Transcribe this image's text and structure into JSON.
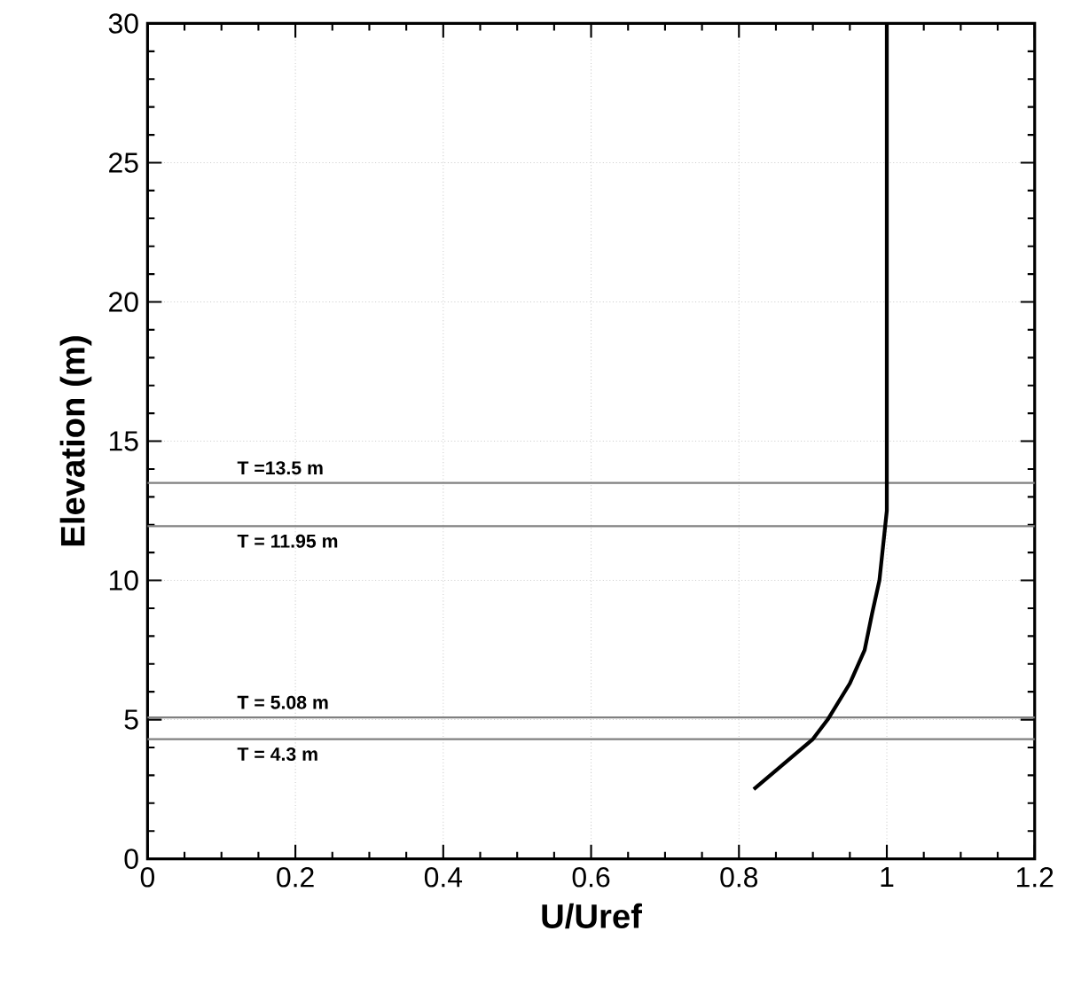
{
  "chart_data": {
    "type": "line",
    "xlabel": "U/Uref",
    "ylabel": "Elevation (m)",
    "x": [
      0.82,
      0.86,
      0.9,
      0.92,
      0.95,
      0.97,
      0.98,
      0.99,
      1.0,
      1.0
    ],
    "series": [
      {
        "color": "#000000",
        "values": [
          2.5,
          3.4,
          4.3,
          5.0,
          6.3,
          7.5,
          8.8,
          10,
          12.5,
          30
        ]
      }
    ],
    "xlim": [
      0,
      1.2
    ],
    "ylim": [
      0,
      30
    ],
    "xticks": [
      0,
      0.2,
      0.4,
      0.6,
      0.8,
      1,
      1.2
    ],
    "yticks": [
      0,
      5,
      10,
      15,
      20,
      25,
      30
    ],
    "grid": true,
    "ref_lines": [
      {
        "axis": "y",
        "value": 13.5,
        "label": "T =13.5 m",
        "color": "#808080"
      },
      {
        "axis": "y",
        "value": 11.95,
        "label": "T = 11.95 m",
        "color": "#808080"
      },
      {
        "axis": "y",
        "value": 5.08,
        "label": "T = 5.08 m",
        "color": "#808080"
      },
      {
        "axis": "y",
        "value": 4.3,
        "label": "T = 4.3 m",
        "color": "#808080"
      }
    ]
  }
}
